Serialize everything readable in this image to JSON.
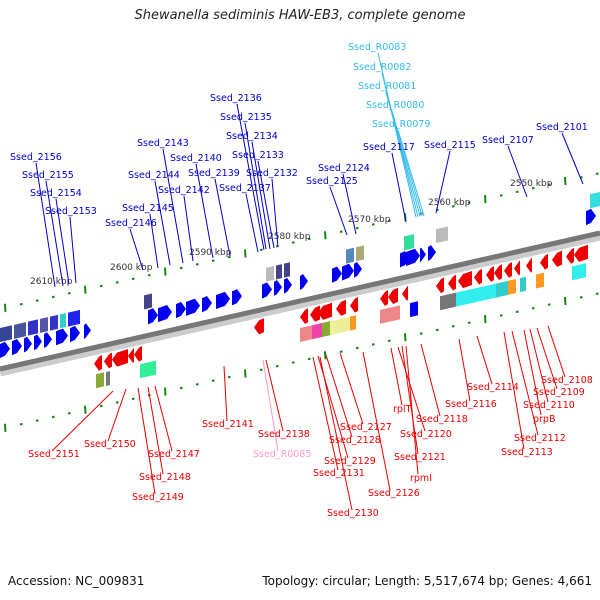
{
  "title": "Shewanella sediminis HAW-EB3, complete genome",
  "footer": {
    "accession": "Accession: NC_009831",
    "summary": "Topology: circular; Length: 5,517,674 bp; Genes: 4,661"
  },
  "colors": {
    "forward_label": "#0000cc",
    "reverse_label": "#ee0000",
    "rrna_forward_label": "#33bbee",
    "rrna_reverse_label": "#ff99cc",
    "tick": "#118811",
    "backbone": "#888888",
    "forward_gene": "#0000ee",
    "reverse_gene": "#ee0000"
  },
  "ruler": [
    {
      "label": "2550 kbp"
    },
    {
      "label": "2560 kbp"
    },
    {
      "label": "2570 kbp"
    },
    {
      "label": "2580 kbp"
    },
    {
      "label": "2590 kbp"
    },
    {
      "label": "2600 kbp"
    },
    {
      "label": "2610 kbp"
    }
  ],
  "forward_labels": [
    {
      "text": "Ssed_2156"
    },
    {
      "text": "Ssed_2155"
    },
    {
      "text": "Ssed_2154"
    },
    {
      "text": "Ssed_2153"
    },
    {
      "text": "Ssed_2146"
    },
    {
      "text": "Ssed_2145"
    },
    {
      "text": "Ssed_2144"
    },
    {
      "text": "Ssed_2143"
    },
    {
      "text": "Ssed_2142"
    },
    {
      "text": "Ssed_2140"
    },
    {
      "text": "Ssed_2139"
    },
    {
      "text": "Ssed_2137"
    },
    {
      "text": "Ssed_2136"
    },
    {
      "text": "Ssed_2135"
    },
    {
      "text": "Ssed_2134"
    },
    {
      "text": "Ssed_2133"
    },
    {
      "text": "Ssed_2132"
    },
    {
      "text": "Ssed_2125"
    },
    {
      "text": "Ssed_2124"
    },
    {
      "text": "Ssed_2117"
    },
    {
      "text": "Ssed_2115"
    },
    {
      "text": "Ssed_2107"
    },
    {
      "text": "Ssed_2101"
    }
  ],
  "rrna_labels": [
    {
      "text": "Ssed_R0083"
    },
    {
      "text": "Ssed_R0082"
    },
    {
      "text": "Ssed_R0081"
    },
    {
      "text": "Ssed_R0080"
    },
    {
      "text": "Ssed_R0079"
    }
  ],
  "reverse_labels": [
    {
      "text": "Ssed_2151"
    },
    {
      "text": "Ssed_2150"
    },
    {
      "text": "Ssed_2147"
    },
    {
      "text": "Ssed_2148"
    },
    {
      "text": "Ssed_2149"
    },
    {
      "text": "Ssed_2141"
    },
    {
      "text": "Ssed_2138"
    },
    {
      "text": "Ssed_R0085"
    },
    {
      "text": "Ssed_2127"
    },
    {
      "text": "Ssed_2128"
    },
    {
      "text": "Ssed_2129"
    },
    {
      "text": "Ssed_2131"
    },
    {
      "text": "Ssed_2130"
    },
    {
      "text": "Ssed_2126"
    },
    {
      "text": "rplT"
    },
    {
      "text": "Ssed_2118"
    },
    {
      "text": "Ssed_2120"
    },
    {
      "text": "Ssed_2121"
    },
    {
      "text": "rpmI"
    },
    {
      "text": "Ssed_2116"
    },
    {
      "text": "Ssed_2114"
    },
    {
      "text": "Ssed_2113"
    },
    {
      "text": "Ssed_2112"
    },
    {
      "text": "prpB"
    },
    {
      "text": "Ssed_2110"
    },
    {
      "text": "Ssed_2109"
    },
    {
      "text": "Ssed_2108"
    }
  ]
}
